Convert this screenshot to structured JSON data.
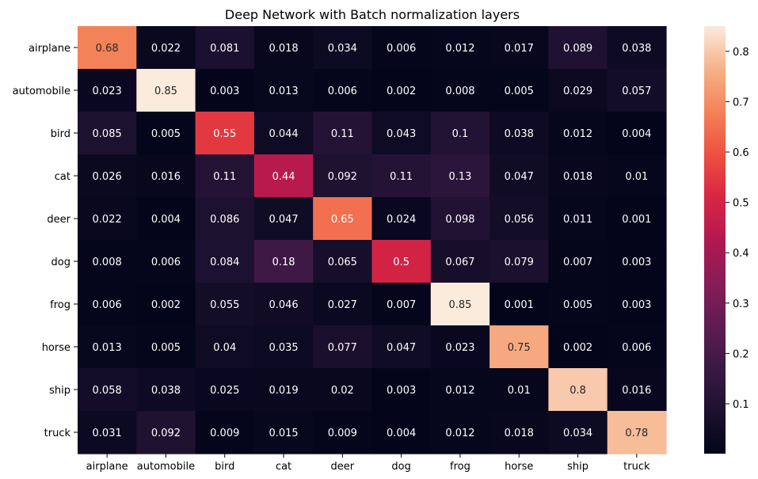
{
  "chart_data": {
    "type": "heatmap",
    "title": "Deep Network with Batch normalization layers",
    "xlabel": "",
    "ylabel": "",
    "x_categories": [
      "airplane",
      "automobile",
      "bird",
      "cat",
      "deer",
      "dog",
      "frog",
      "horse",
      "ship",
      "truck"
    ],
    "y_categories": [
      "airplane",
      "automobile",
      "bird",
      "cat",
      "deer",
      "dog",
      "frog",
      "horse",
      "ship",
      "truck"
    ],
    "values": [
      [
        "0.68",
        "0.022",
        "0.081",
        "0.018",
        "0.034",
        "0.006",
        "0.012",
        "0.017",
        "0.089",
        "0.038"
      ],
      [
        "0.023",
        "0.85",
        "0.003",
        "0.013",
        "0.006",
        "0.002",
        "0.008",
        "0.005",
        "0.029",
        "0.057"
      ],
      [
        "0.085",
        "0.005",
        "0.55",
        "0.044",
        "0.11",
        "0.043",
        "0.1",
        "0.038",
        "0.012",
        "0.004"
      ],
      [
        "0.026",
        "0.016",
        "0.11",
        "0.44",
        "0.092",
        "0.11",
        "0.13",
        "0.047",
        "0.018",
        "0.01"
      ],
      [
        "0.022",
        "0.004",
        "0.086",
        "0.047",
        "0.65",
        "0.024",
        "0.098",
        "0.056",
        "0.011",
        "0.001"
      ],
      [
        "0.008",
        "0.006",
        "0.084",
        "0.18",
        "0.065",
        "0.5",
        "0.067",
        "0.079",
        "0.007",
        "0.003"
      ],
      [
        "0.006",
        "0.002",
        "0.055",
        "0.046",
        "0.027",
        "0.007",
        "0.85",
        "0.001",
        "0.005",
        "0.003"
      ],
      [
        "0.013",
        "0.005",
        "0.04",
        "0.035",
        "0.077",
        "0.047",
        "0.023",
        "0.75",
        "0.002",
        "0.006"
      ],
      [
        "0.058",
        "0.038",
        "0.025",
        "0.019",
        "0.02",
        "0.003",
        "0.012",
        "0.01",
        "0.8",
        "0.016"
      ],
      [
        "0.031",
        "0.092",
        "0.009",
        "0.015",
        "0.009",
        "0.004",
        "0.012",
        "0.018",
        "0.034",
        "0.78"
      ]
    ],
    "colorbar": {
      "range": [
        0.001,
        0.85
      ],
      "ticks": [
        "0.1",
        "0.2",
        "0.3",
        "0.4",
        "0.5",
        "0.6",
        "0.7",
        "0.8"
      ],
      "colormap": "rocket"
    }
  }
}
